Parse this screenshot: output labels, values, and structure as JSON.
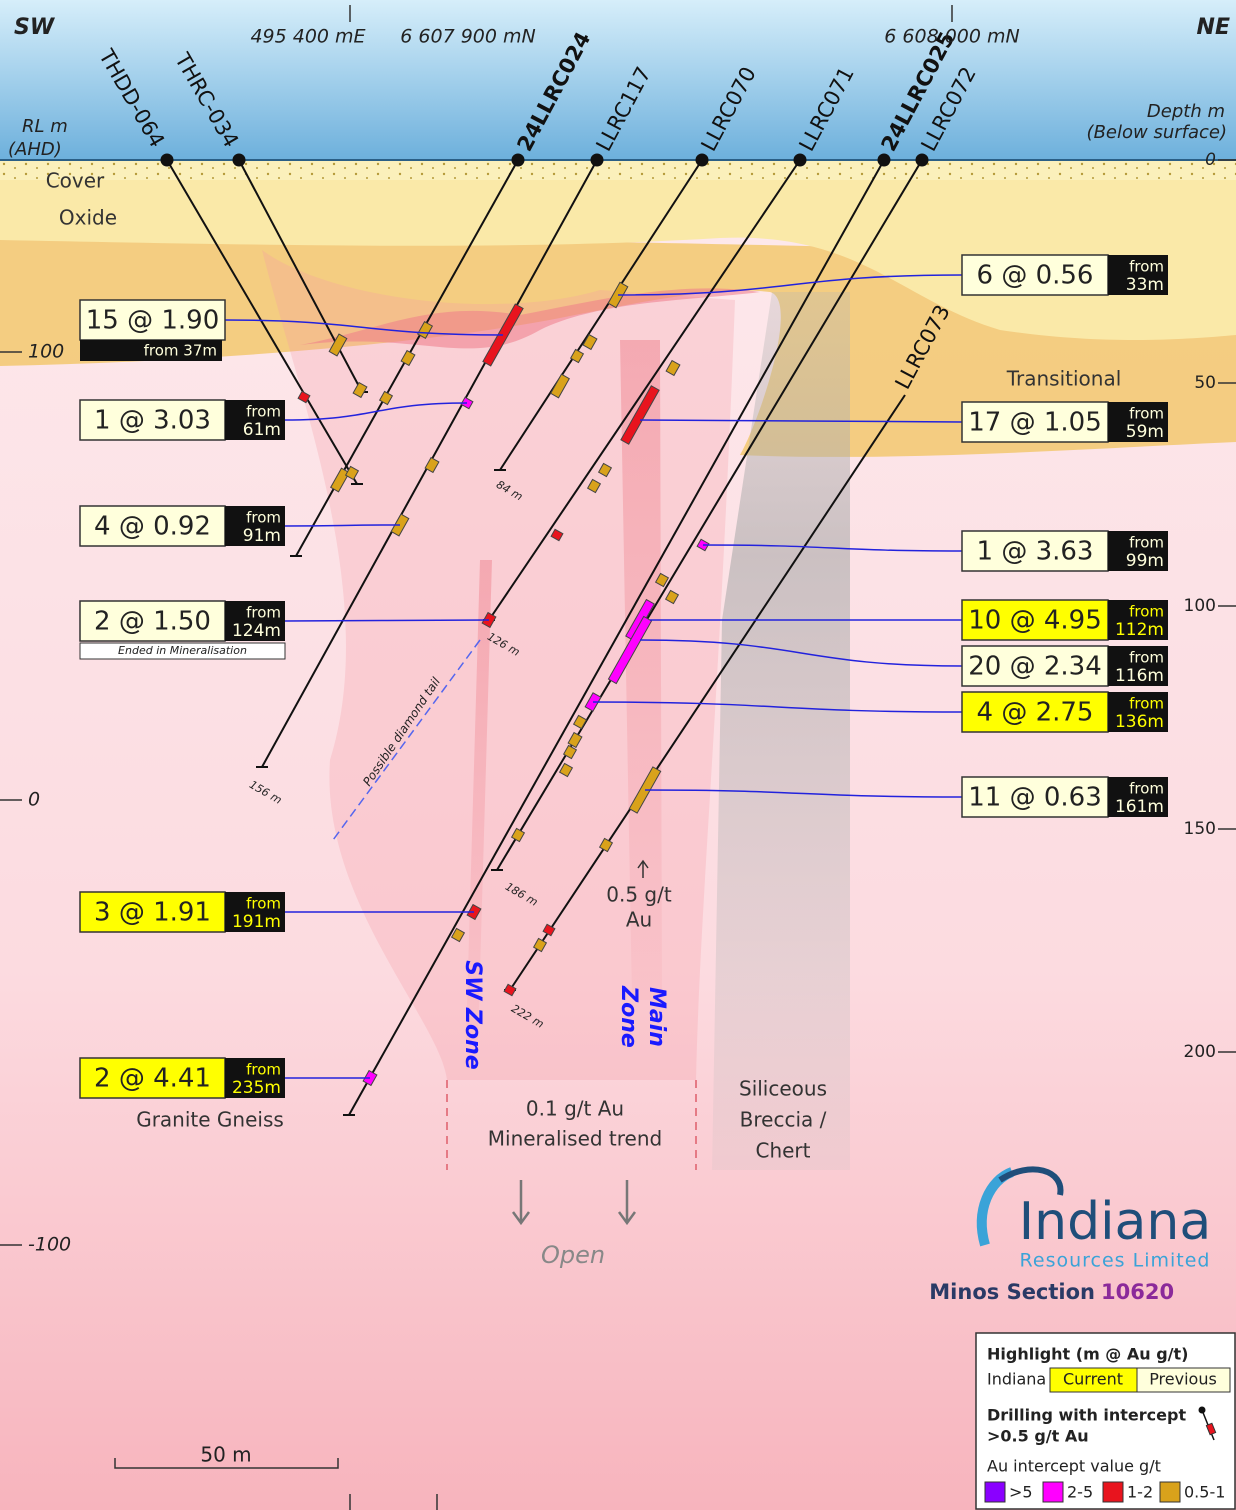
{
  "header": {
    "left_corner": "SW",
    "right_corner": "NE",
    "easting": "495 400 mE",
    "northing_1": "6 607 900 mN",
    "northing_2": "6 608 000 mN",
    "rl_title": [
      "RL m",
      "(AHD)"
    ],
    "depth_title": [
      "Depth m",
      "(Below surface)"
    ]
  },
  "rl_axis": [
    "100",
    "0",
    "-100"
  ],
  "depth_axis": [
    "0",
    "50",
    "100",
    "150",
    "200"
  ],
  "holes": [
    {
      "name": "THDD-064"
    },
    {
      "name": "THRC-034"
    },
    {
      "name": "24LLRC024"
    },
    {
      "name": "LLRC117",
      "end": "156 m"
    },
    {
      "name": "LLRC070",
      "end": "84 m"
    },
    {
      "name": "LLRC071",
      "end": "126 m"
    },
    {
      "name": "24LLRC025"
    },
    {
      "name": "LLRC072",
      "end": "186 m"
    },
    {
      "name": "LLRC073",
      "end": "222 m"
    }
  ],
  "intercepts": [
    {
      "grade": "15 @ 1.90",
      "from": "from 37m",
      "fill": "#ffffdc"
    },
    {
      "grade": "1 @ 3.03",
      "from": "from",
      "depth": "61m",
      "fill": "#ffffdc"
    },
    {
      "grade": "4 @ 0.92",
      "from": "from",
      "depth": "91m",
      "fill": "#ffffdc"
    },
    {
      "grade": "2 @ 1.50",
      "from": "from",
      "depth": "124m",
      "fill": "#ffffdc",
      "note": "Ended in Mineralisation"
    },
    {
      "grade": "3 @ 1.91",
      "from": "from",
      "depth": "191m",
      "fill": "#ffff00"
    },
    {
      "grade": "2 @ 4.41",
      "from": "from",
      "depth": "235m",
      "fill": "#ffff00"
    },
    {
      "grade": "6 @ 0.56",
      "from": "from",
      "depth": "33m",
      "fill": "#ffffdc"
    },
    {
      "grade": "17 @ 1.05",
      "from": "from",
      "depth": "59m",
      "fill": "#ffffdc"
    },
    {
      "grade": "1 @ 3.63",
      "from": "from",
      "depth": "99m",
      "fill": "#ffffdc"
    },
    {
      "grade": "10 @ 4.95",
      "from": "from",
      "depth": "112m",
      "fill": "#ffff00"
    },
    {
      "grade": "20 @ 2.34",
      "from": "from",
      "depth": "116m",
      "fill": "#ffffdc"
    },
    {
      "grade": "4 @ 2.75",
      "from": "from",
      "depth": "136m",
      "fill": "#ffff00"
    },
    {
      "grade": "11 @ 0.63",
      "from": "from",
      "depth": "161m",
      "fill": "#ffffdc"
    }
  ],
  "labels": {
    "cover": "Cover",
    "oxide": "Oxide",
    "transitional": "Transitional",
    "granite": "Granite Gneiss",
    "breccia": [
      "Siliceous",
      "Breccia /",
      "Chert"
    ],
    "trend": [
      "0.1 g/t Au",
      "Mineralised trend"
    ],
    "main_grade": [
      "0.5 g/t",
      "Au"
    ],
    "diamond_tail": "Possible diamond tail",
    "sw_zone": "SW Zone",
    "main_zone": [
      "Main",
      "Zone"
    ],
    "open": "Open"
  },
  "logo": {
    "name": "Indiana",
    "subtitle": "Resources Limited",
    "section": "Minos Section",
    "section_number": "10620"
  },
  "scale_bar": "50 m",
  "legend": {
    "title": "Highlight (m @ Au g/t)",
    "company": "Indiana",
    "current": {
      "label": "Current",
      "color": "#ffff00"
    },
    "previous": {
      "label": "Previous",
      "color": "#ffffdc"
    },
    "drilling": [
      "Drilling with intercept",
      ">0.5 g/t Au"
    ],
    "value_title": "Au intercept value g/t",
    "items": [
      {
        "label": ">5",
        "color": "#8a00ff"
      },
      {
        "label": "2-5",
        "color": "#ff00ff"
      },
      {
        "label": "1-2",
        "color": "#e8141e"
      },
      {
        "label": "0.5-1",
        "color": "#d9a21b"
      }
    ]
  }
}
